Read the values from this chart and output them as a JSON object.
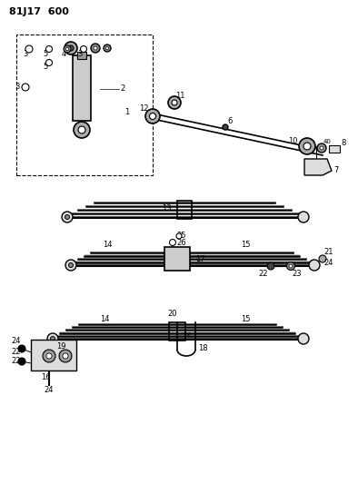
{
  "title": "81J17  600",
  "bg_color": "#ffffff",
  "line_color": "#000000",
  "fig_width": 3.94,
  "fig_height": 5.33,
  "dpi": 100
}
